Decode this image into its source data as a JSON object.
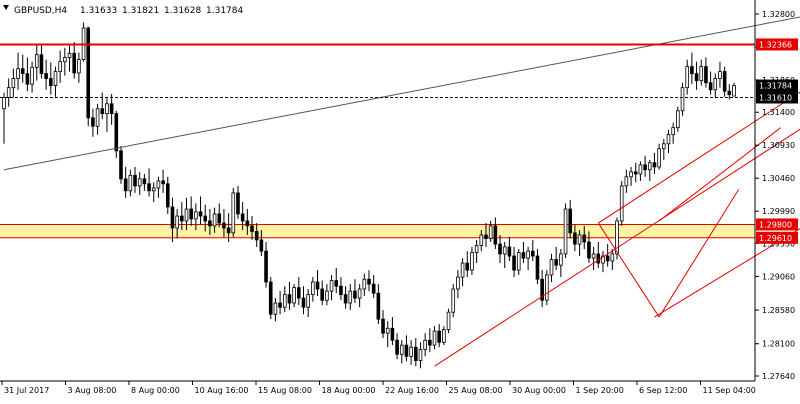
{
  "chart_data": {
    "type": "candlestick",
    "header": {
      "symbol_tf": "GBPUSD,H4",
      "open": "1.31633",
      "high": "1.31821",
      "low": "1.31628",
      "close": "1.31784"
    },
    "y_ticks": [
      "1.32800",
      "1.32330",
      "1.31860",
      "1.31400",
      "1.30930",
      "1.30460",
      "1.29990",
      "1.29530",
      "1.29060",
      "1.28580",
      "1.28100",
      "1.27640"
    ],
    "ylim": [
      1.2764,
      1.328
    ],
    "x_ticks": [
      "31 Jul 2017",
      "3 Aug 08:00",
      "8 Aug 00:00",
      "10 Aug 16:00",
      "15 Aug 08:00",
      "18 Aug 00:00",
      "22 Aug 16:00",
      "25 Aug 08:00",
      "30 Aug 00:00",
      "1 Sep 20:00",
      "6 Sep 12:00",
      "11 Sep 04:00"
    ],
    "price_tags": {
      "resistance": "1.32366",
      "current": "1.31784",
      "dashed": "1.31610",
      "zone_top": "1.29800",
      "zone_bottom": "1.29610"
    },
    "levels": {
      "resistance": 1.32366,
      "dashed": 1.3161,
      "zone_top": 1.298,
      "zone_bottom": 1.2961
    },
    "candles": [
      [
        1.3145,
        1.3168,
        1.3095,
        1.3161
      ],
      [
        1.3161,
        1.3188,
        1.3148,
        1.3175
      ],
      [
        1.3175,
        1.3202,
        1.3161,
        1.3188
      ],
      [
        1.3188,
        1.3225,
        1.3172,
        1.3202
      ],
      [
        1.3202,
        1.3222,
        1.3182,
        1.3195
      ],
      [
        1.3195,
        1.3218,
        1.317,
        1.318
      ],
      [
        1.318,
        1.3212,
        1.3168,
        1.3204
      ],
      [
        1.3204,
        1.3238,
        1.3185,
        1.3222
      ],
      [
        1.3222,
        1.3235,
        1.3188,
        1.3195
      ],
      [
        1.3195,
        1.3215,
        1.3172,
        1.3188
      ],
      [
        1.3188,
        1.3211,
        1.3165,
        1.3178
      ],
      [
        1.3178,
        1.3205,
        1.3162,
        1.3198
      ],
      [
        1.3198,
        1.3228,
        1.3182,
        1.3212
      ],
      [
        1.3212,
        1.3232,
        1.3192,
        1.3218
      ],
      [
        1.3218,
        1.3235,
        1.3198,
        1.3224
      ],
      [
        1.3224,
        1.324,
        1.3188,
        1.3196
      ],
      [
        1.3196,
        1.3225,
        1.3182,
        1.3215
      ],
      [
        1.3215,
        1.3268,
        1.3212,
        1.326
      ],
      [
        1.326,
        1.3262,
        1.312,
        1.3132
      ],
      [
        1.3132,
        1.3145,
        1.3105,
        1.312
      ],
      [
        1.312,
        1.3152,
        1.3108,
        1.3145
      ],
      [
        1.3145,
        1.3168,
        1.313,
        1.3138
      ],
      [
        1.3138,
        1.316,
        1.3112,
        1.3152
      ],
      [
        1.3152,
        1.3166,
        1.3122,
        1.3138
      ],
      [
        1.3138,
        1.3142,
        1.3075,
        1.3085
      ],
      [
        1.3085,
        1.3092,
        1.3038,
        1.3045
      ],
      [
        1.3045,
        1.3062,
        1.3018,
        1.3028
      ],
      [
        1.3028,
        1.3058,
        1.302,
        1.305
      ],
      [
        1.305,
        1.3062,
        1.3025,
        1.3035
      ],
      [
        1.3035,
        1.3055,
        1.3022,
        1.3045
      ],
      [
        1.3045,
        1.3052,
        1.3028,
        1.3038
      ],
      [
        1.3038,
        1.306,
        1.302,
        1.3028
      ],
      [
        1.3028,
        1.304,
        1.3012,
        1.3032
      ],
      [
        1.3032,
        1.3048,
        1.3018,
        1.3042
      ],
      [
        1.3042,
        1.3058,
        1.3025,
        1.3038
      ],
      [
        1.3038,
        1.3048,
        1.2995,
        1.3005
      ],
      [
        1.3005,
        1.3018,
        1.2955,
        1.2975
      ],
      [
        1.2975,
        1.3002,
        1.296,
        1.2992
      ],
      [
        1.2992,
        1.3012,
        1.2972,
        1.2985
      ],
      [
        1.2985,
        1.3018,
        1.2972,
        1.3002
      ],
      [
        1.3002,
        1.302,
        1.2978,
        1.2988
      ],
      [
        1.2988,
        1.301,
        1.2972,
        1.2998
      ],
      [
        1.2998,
        1.302,
        1.298,
        1.2992
      ],
      [
        1.2992,
        1.3008,
        1.297,
        1.2985
      ],
      [
        1.2985,
        1.3002,
        1.2965,
        1.2978
      ],
      [
        1.2978,
        1.3004,
        1.2968,
        1.2995
      ],
      [
        1.2995,
        1.301,
        1.2976,
        1.2982
      ],
      [
        1.2982,
        1.3002,
        1.2962,
        1.2975
      ],
      [
        1.2975,
        1.2996,
        1.2955,
        1.2968
      ],
      [
        1.2968,
        1.3032,
        1.2962,
        1.3025
      ],
      [
        1.3025,
        1.3035,
        1.2988,
        1.2995
      ],
      [
        1.2995,
        1.3012,
        1.2972,
        1.2985
      ],
      [
        1.2985,
        1.3002,
        1.2965,
        1.2978
      ],
      [
        1.2978,
        1.2992,
        1.2958,
        1.297
      ],
      [
        1.297,
        1.2982,
        1.2948,
        1.2958
      ],
      [
        1.2958,
        1.2972,
        1.2935,
        1.2942
      ],
      [
        1.2942,
        1.2955,
        1.289,
        1.2898
      ],
      [
        1.2898,
        1.2905,
        1.2845,
        1.2852
      ],
      [
        1.2852,
        1.2875,
        1.2842,
        1.2868
      ],
      [
        1.2868,
        1.2885,
        1.2852,
        1.2862
      ],
      [
        1.2862,
        1.2892,
        1.2855,
        1.288
      ],
      [
        1.288,
        1.2898,
        1.2858,
        1.2868
      ],
      [
        1.2868,
        1.2895,
        1.2862,
        1.289
      ],
      [
        1.289,
        1.2905,
        1.2865,
        1.2875
      ],
      [
        1.2875,
        1.2892,
        1.2852,
        1.2862
      ],
      [
        1.2862,
        1.2888,
        1.2848,
        1.288
      ],
      [
        1.288,
        1.2905,
        1.287,
        1.2898
      ],
      [
        1.2898,
        1.2915,
        1.2878,
        1.2888
      ],
      [
        1.2888,
        1.29,
        1.2865,
        1.2872
      ],
      [
        1.2872,
        1.2895,
        1.2865,
        1.2885
      ],
      [
        1.2885,
        1.2908,
        1.2872,
        1.29
      ],
      [
        1.29,
        1.2918,
        1.2882,
        1.2892
      ],
      [
        1.2892,
        1.2905,
        1.2872,
        1.288
      ],
      [
        1.288,
        1.2892,
        1.286,
        1.2868
      ],
      [
        1.2868,
        1.2895,
        1.2858,
        1.2885
      ],
      [
        1.2885,
        1.2902,
        1.2868,
        1.2875
      ],
      [
        1.2875,
        1.2895,
        1.2862,
        1.2888
      ],
      [
        1.2888,
        1.291,
        1.2878,
        1.2902
      ],
      [
        1.2902,
        1.2915,
        1.2885,
        1.2895
      ],
      [
        1.2895,
        1.2908,
        1.2875,
        1.2882
      ],
      [
        1.2882,
        1.2895,
        1.2838,
        1.2845
      ],
      [
        1.2845,
        1.2858,
        1.2818,
        1.2825
      ],
      [
        1.2825,
        1.2842,
        1.2805,
        1.2832
      ],
      [
        1.2832,
        1.2848,
        1.2808,
        1.2815
      ],
      [
        1.2815,
        1.2825,
        1.2788,
        1.2795
      ],
      [
        1.2795,
        1.2815,
        1.2782,
        1.2808
      ],
      [
        1.2808,
        1.2822,
        1.2785,
        1.2792
      ],
      [
        1.2792,
        1.2815,
        1.278,
        1.2805
      ],
      [
        1.2805,
        1.2818,
        1.2778,
        1.2786
      ],
      [
        1.2786,
        1.2812,
        1.2775,
        1.2802
      ],
      [
        1.2802,
        1.2825,
        1.2792,
        1.2815
      ],
      [
        1.2815,
        1.2832,
        1.2798,
        1.2808
      ],
      [
        1.2808,
        1.2835,
        1.2802,
        1.2828
      ],
      [
        1.2828,
        1.2838,
        1.2805,
        1.2812
      ],
      [
        1.2812,
        1.2835,
        1.2808,
        1.283
      ],
      [
        1.283,
        1.286,
        1.2825,
        1.2855
      ],
      [
        1.2855,
        1.2895,
        1.2848,
        1.2888
      ],
      [
        1.2888,
        1.2915,
        1.2875,
        1.2905
      ],
      [
        1.2905,
        1.2932,
        1.2892,
        1.2925
      ],
      [
        1.2925,
        1.2942,
        1.2905,
        1.2915
      ],
      [
        1.2915,
        1.2948,
        1.2908,
        1.294
      ],
      [
        1.294,
        1.2958,
        1.2925,
        1.295
      ],
      [
        1.295,
        1.2972,
        1.2942,
        1.2965
      ],
      [
        1.2965,
        1.2982,
        1.2948,
        1.296
      ],
      [
        1.296,
        1.2985,
        1.2955,
        1.2978
      ],
      [
        1.2978,
        1.299,
        1.2945,
        1.2952
      ],
      [
        1.2952,
        1.2965,
        1.2925,
        1.2938
      ],
      [
        1.2938,
        1.2955,
        1.2918,
        1.2948
      ],
      [
        1.2948,
        1.2962,
        1.2928,
        1.2935
      ],
      [
        1.2935,
        1.2948,
        1.2905,
        1.2915
      ],
      [
        1.2915,
        1.2945,
        1.2908,
        1.294
      ],
      [
        1.294,
        1.2955,
        1.2925,
        1.2932
      ],
      [
        1.2932,
        1.2948,
        1.2915,
        1.2942
      ],
      [
        1.2942,
        1.2958,
        1.2928,
        1.2935
      ],
      [
        1.2935,
        1.2945,
        1.2895,
        1.2902
      ],
      [
        1.2902,
        1.2915,
        1.2862,
        1.2872
      ],
      [
        1.2872,
        1.2915,
        1.2865,
        1.2908
      ],
      [
        1.2908,
        1.2938,
        1.2898,
        1.293
      ],
      [
        1.293,
        1.2948,
        1.2915,
        1.2922
      ],
      [
        1.2922,
        1.2945,
        1.2905,
        1.2938
      ],
      [
        1.2938,
        1.301,
        1.2932,
        1.3002
      ],
      [
        1.3002,
        1.3015,
        1.296,
        1.2968
      ],
      [
        1.2968,
        1.298,
        1.2942,
        1.2952
      ],
      [
        1.2952,
        1.2972,
        1.2935,
        1.2965
      ],
      [
        1.2965,
        1.2978,
        1.2945,
        1.2955
      ],
      [
        1.2955,
        1.297,
        1.2925,
        1.2932
      ],
      [
        1.2932,
        1.2948,
        1.2915,
        1.2938
      ],
      [
        1.2938,
        1.2955,
        1.2918,
        1.2925
      ],
      [
        1.2925,
        1.2942,
        1.2912,
        1.2935
      ],
      [
        1.2935,
        1.2952,
        1.292,
        1.2928
      ],
      [
        1.2928,
        1.2945,
        1.2915,
        1.2938
      ],
      [
        1.2938,
        1.299,
        1.293,
        1.2985
      ],
      [
        1.2985,
        1.3042,
        1.2978,
        1.3035
      ],
      [
        1.3035,
        1.3058,
        1.3025,
        1.3048
      ],
      [
        1.3048,
        1.3062,
        1.3035,
        1.3055
      ],
      [
        1.3055,
        1.3068,
        1.304,
        1.3052
      ],
      [
        1.3052,
        1.307,
        1.3042,
        1.3065
      ],
      [
        1.3065,
        1.3078,
        1.3048,
        1.3058
      ],
      [
        1.3058,
        1.3072,
        1.3042,
        1.3068
      ],
      [
        1.3068,
        1.3082,
        1.3052,
        1.3062
      ],
      [
        1.3062,
        1.3095,
        1.3058,
        1.3088
      ],
      [
        1.3088,
        1.3102,
        1.3072,
        1.3095
      ],
      [
        1.3095,
        1.3115,
        1.3082,
        1.3108
      ],
      [
        1.3108,
        1.3125,
        1.3095,
        1.3118
      ],
      [
        1.3118,
        1.3148,
        1.3112,
        1.3142
      ],
      [
        1.3142,
        1.3182,
        1.3135,
        1.3175
      ],
      [
        1.3175,
        1.3215,
        1.3165,
        1.3205
      ],
      [
        1.3205,
        1.3225,
        1.318,
        1.3195
      ],
      [
        1.3195,
        1.3212,
        1.3172,
        1.3185
      ],
      [
        1.3185,
        1.3215,
        1.3178,
        1.3205
      ],
      [
        1.3205,
        1.3218,
        1.3175,
        1.3182
      ],
      [
        1.3182,
        1.3198,
        1.3165,
        1.3172
      ],
      [
        1.3172,
        1.3195,
        1.316,
        1.3188
      ],
      [
        1.3188,
        1.3212,
        1.3175,
        1.3198
      ],
      [
        1.3198,
        1.3205,
        1.3162,
        1.317
      ],
      [
        1.317,
        1.318,
        1.3158,
        1.3165
      ],
      [
        1.3163,
        1.3182,
        1.3163,
        1.3178
      ]
    ],
    "lines": [
      {
        "name": "trendline",
        "color": "#555555",
        "from": [
          0,
          1.3058
        ],
        "to": [
          200,
          1.3314
        ]
      },
      {
        "name": "channel-mid",
        "color": "#e60000",
        "from": [
          92,
          1.2778
        ],
        "to": [
          200,
          1.3245
        ]
      },
      {
        "name": "channel-upper",
        "color": "#e60000",
        "from": [
          127,
          1.2982
        ],
        "to": [
          200,
          1.3298
        ]
      },
      {
        "name": "channel-lower",
        "color": "#e60000",
        "from": [
          139,
          1.2848
        ],
        "to": [
          200,
          1.3095
        ]
      },
      {
        "name": "channel-inner-upper",
        "color": "#e60000",
        "from": [
          140,
          1.2985
        ],
        "to": [
          166,
          1.3118
        ]
      },
      {
        "name": "pattern-leg-1",
        "color": "#e60000",
        "from": [
          127,
          1.2982
        ],
        "to": [
          140,
          1.2848
        ]
      },
      {
        "name": "pattern-leg-2",
        "color": "#e60000",
        "from": [
          140,
          1.2848
        ],
        "to": [
          157,
          1.303
        ]
      }
    ],
    "colors": {
      "background": "#ffffff",
      "candle": "#000000",
      "line": "#e60000",
      "zone_fill": "#fff3a6",
      "tag_red": "#e60000",
      "tag_dark": "#000000"
    },
    "grid": false
  }
}
